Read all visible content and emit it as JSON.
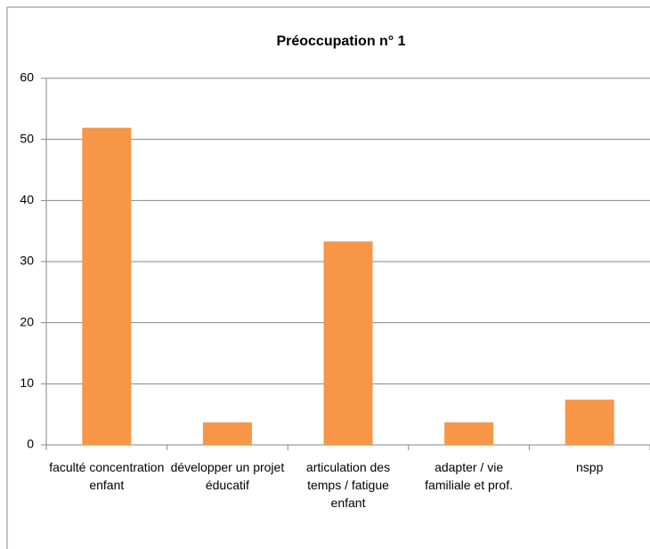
{
  "chart_data": {
    "type": "bar",
    "title": "Préoccupation n° 1",
    "categories": [
      "faculté concentration enfant",
      "développer un projet éducatif",
      "articulation des temps / fatigue enfant",
      "adapter / vie familiale et prof.",
      "nspp"
    ],
    "values": [
      51.9,
      3.7,
      33.3,
      3.7,
      7.4
    ],
    "color": "#f79646",
    "ylim": [
      0,
      60
    ],
    "yticks": [
      0,
      10,
      20,
      30,
      40,
      50,
      60
    ],
    "grid": true
  }
}
